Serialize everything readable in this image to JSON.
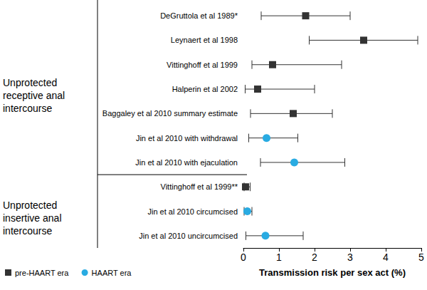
{
  "chart_data": {
    "type": "forest",
    "x_label": "Transmission risk per sex act (%)",
    "categories": [
      "DeGruttola et al 1989*",
      "Leynaert et al 1998",
      "Vittinghoff et al 1999",
      "Halperin et al 2002",
      "Baggaley et al 2010 summary estimate",
      "Jin et al 2010 with withdrawal",
      "Jin et al 2010 with ejaculation",
      "Vittinghoff et al 1999**",
      "Jin et al 2010 circumcised",
      "Jin et al 2010 uncircumcised"
    ],
    "groups": [
      {
        "label": "Unprotected  receptive anal intercourse",
        "members": [
          "DeGruttola et al 1989*",
          "Leynaert et al 1998",
          "Vittinghoff et al 1999",
          "Halperin et al 2002",
          "Baggaley et al 2010 summary estimate",
          "Jin et al 2010 with withdrawal",
          "Jin et al 2010 with ejaculation"
        ]
      },
      {
        "label": "Unprotected  insertive anal intercourse",
        "members": [
          "Vittinghoff et al 1999**",
          "Jin et al 2010 circumcised",
          "Jin et al 2010 uncircumcised"
        ]
      }
    ],
    "series": [
      {
        "name": "pre-HAART era",
        "color": "#333333",
        "marker": "square",
        "values": [
          1.75,
          3.38,
          0.82,
          0.4,
          1.4,
          null,
          null,
          0.06,
          null,
          null
        ],
        "lower": [
          0.5,
          1.85,
          0.24,
          0.05,
          0.2,
          null,
          null,
          0.02,
          null,
          null
        ],
        "upper": [
          3.0,
          4.9,
          2.76,
          2.0,
          2.5,
          null,
          null,
          0.19,
          null,
          null
        ]
      },
      {
        "name": "HAART era",
        "color": "#29abe2",
        "marker": "circle",
        "values": [
          null,
          null,
          null,
          null,
          null,
          0.65,
          1.43,
          null,
          0.11,
          0.62
        ],
        "lower": [
          null,
          null,
          null,
          null,
          null,
          0.15,
          0.48,
          null,
          0.02,
          0.07
        ],
        "upper": [
          null,
          null,
          null,
          null,
          null,
          1.53,
          2.85,
          null,
          0.24,
          1.68
        ]
      }
    ],
    "xlim": [
      0,
      5
    ],
    "xticks": [
      0,
      1,
      2,
      3,
      4,
      5
    ],
    "legend": "bottom-left",
    "grid": false
  }
}
